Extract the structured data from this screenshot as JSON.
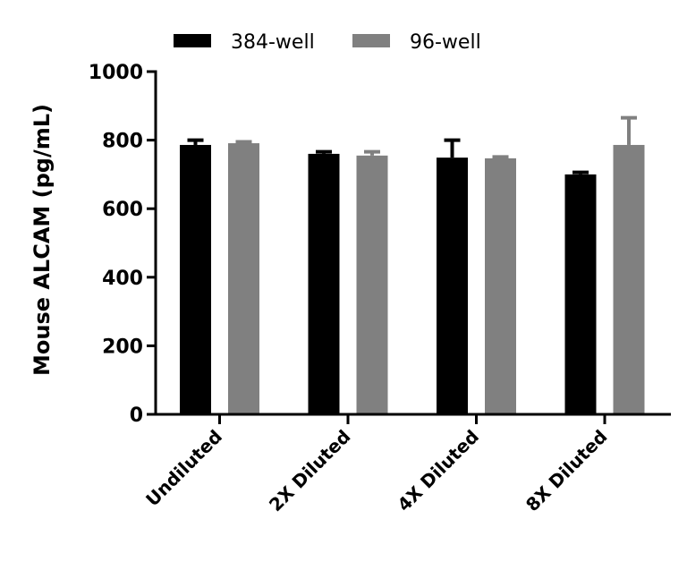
{
  "chart_data": {
    "type": "bar",
    "title": "",
    "xlabel": "",
    "ylabel": "Mouse ALCAM (pg/mL)",
    "ylim": [
      0,
      1000
    ],
    "yticks": [
      0,
      200,
      400,
      600,
      800,
      1000
    ],
    "grid": false,
    "legend_position": "top",
    "categories": [
      "Undiluted",
      "2X Diluted",
      "4X Diluted",
      "8X Diluted"
    ],
    "series": [
      {
        "name": "384-well",
        "color": "#000000",
        "values": [
          786,
          760,
          749,
          700
        ],
        "error_upper": [
          804,
          770,
          804,
          710
        ]
      },
      {
        "name": "96-well",
        "color": "#808080",
        "values": [
          791,
          755,
          747,
          786
        ],
        "error_upper": [
          799,
          770,
          755,
          869
        ]
      }
    ]
  },
  "legend": {
    "items": [
      {
        "label": "384-well",
        "color": "#000000"
      },
      {
        "label": "96-well",
        "color": "#808080"
      }
    ]
  },
  "axes": {
    "y_title": "Mouse ALCAM (pg/mL)",
    "y_tick_labels": [
      "0",
      "200",
      "400",
      "600",
      "800",
      "1000"
    ],
    "x_tick_labels": [
      "Undiluted",
      "2X Diluted",
      "4X Diluted",
      "8X Diluted"
    ]
  }
}
